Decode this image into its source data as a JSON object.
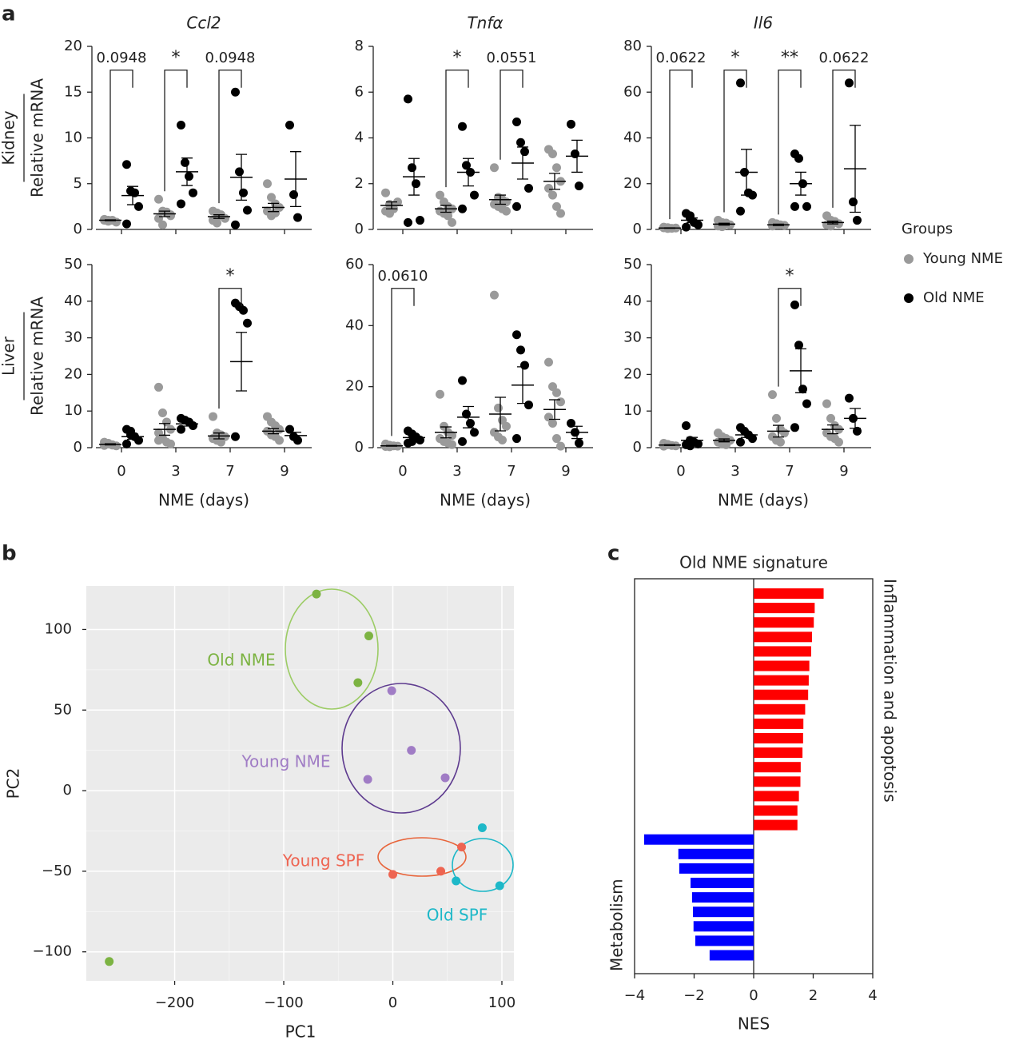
{
  "panel_labels": [
    "a",
    "b",
    "c"
  ],
  "legend": {
    "title": "Groups",
    "items": [
      {
        "name": "Young NME",
        "color": "#9a9a9a"
      },
      {
        "name": "Old NME",
        "color": "#000000"
      }
    ]
  },
  "chart_data": [
    {
      "type": "dot",
      "title": "Ccl2",
      "row_label": "Kidney",
      "ylabel": "Relative mRNA",
      "categories": [
        null,
        null,
        null,
        null
      ],
      "ylim": [
        0,
        20
      ],
      "yticks": [
        0,
        5,
        10,
        15,
        20
      ],
      "annotations": [
        "0.0948",
        "*",
        "0.0948",
        null
      ],
      "series": [
        {
          "values": [
            [
              1,
              0.9,
              1,
              0.8,
              1.1,
              1
            ],
            [
              3.3,
              2,
              1.8,
              1.5,
              1.2,
              0.5,
              1.9,
              1.6
            ],
            [
              2,
              1.8,
              1.5,
              1.2,
              1,
              0.7,
              1.6
            ],
            [
              5,
              3.5,
              2.8,
              2.4,
              2,
              1.5,
              1.8
            ]
          ],
          "means": [
            1,
            1.7,
            1.4,
            2.4
          ],
          "sems": [
            0.05,
            0.3,
            0.2,
            0.45
          ]
        },
        {
          "values": [
            [
              7.1,
              4.2,
              4,
              2.5,
              0.6
            ],
            [
              11.4,
              7.3,
              5.8,
              4,
              2.8
            ],
            [
              15,
              6.3,
              4,
              2.1,
              0.5
            ],
            [
              11.4,
              3.8,
              1.3
            ]
          ],
          "means": [
            3.7,
            6.3,
            5.7,
            5.5
          ],
          "sems": [
            1,
            1.5,
            2.5,
            3
          ]
        }
      ]
    },
    {
      "type": "dot",
      "title": "Tnfα",
      "categories": [
        null,
        null,
        null,
        null
      ],
      "ylim": [
        0,
        8
      ],
      "yticks": [
        0,
        2,
        4,
        6,
        8
      ],
      "annotations": [
        null,
        "*",
        "0.0551",
        null
      ],
      "series": [
        {
          "values": [
            [
              1.6,
              1.1,
              0.9,
              1.2,
              0.8,
              0.7
            ],
            [
              1.5,
              1.2,
              1,
              0.9,
              0.8,
              0.7,
              0.6,
              0.3
            ],
            [
              2.7,
              1.4,
              1.3,
              1.2,
              1.1,
              1,
              0.9,
              0.8
            ],
            [
              3.5,
              3.3,
              2.7,
              2.1,
              1.8,
              1.5,
              1,
              0.7
            ]
          ],
          "means": [
            1.05,
            0.9,
            1.3,
            2.1
          ],
          "sems": [
            0.15,
            0.15,
            0.2,
            0.35
          ]
        },
        {
          "values": [
            [
              5.7,
              2.7,
              2,
              0.4,
              0.3
            ],
            [
              4.5,
              2.8,
              2.5,
              1.5,
              0.9
            ],
            [
              4.7,
              3.8,
              3.4,
              1.8,
              1
            ],
            [
              4.6,
              3.3,
              1.9
            ]
          ],
          "means": [
            2.3,
            2.5,
            2.9,
            3.2
          ],
          "sems": [
            0.8,
            0.6,
            0.7,
            0.7
          ]
        }
      ]
    },
    {
      "type": "dot",
      "title": "Il6",
      "categories": [
        null,
        null,
        null,
        null
      ],
      "ylim": [
        0,
        80
      ],
      "yticks": [
        0,
        20,
        40,
        60,
        80
      ],
      "annotations": [
        "0.0622",
        "*",
        "**",
        "0.0622"
      ],
      "series": [
        {
          "values": [
            [
              1,
              0.8,
              0.5,
              0.6,
              0.7,
              0.4
            ],
            [
              4,
              3,
              2.5,
              2,
              1.5,
              1.2,
              2.8
            ],
            [
              3,
              2.5,
              2,
              1.8,
              1.5,
              2.2
            ],
            [
              6,
              4,
              3,
              2.5,
              2,
              1.5,
              3.5
            ]
          ],
          "means": [
            0.6,
            2.3,
            2,
            3
          ],
          "sems": [
            0.1,
            0.4,
            0.3,
            0.6
          ]
        },
        {
          "values": [
            [
              7,
              5,
              3,
              2,
              1,
              6
            ],
            [
              64,
              25,
              16,
              15,
              8
            ],
            [
              33,
              31,
              20,
              10,
              10
            ],
            [
              64,
              12,
              4
            ]
          ],
          "means": [
            4,
            25,
            20,
            26.5
          ],
          "sems": [
            1,
            10,
            5,
            19
          ]
        }
      ]
    },
    {
      "type": "dot",
      "row_label": "Liver",
      "ylabel": "Relative mRNA",
      "xlabel": "NME (days)",
      "categories": [
        "0",
        "3",
        "7",
        "9"
      ],
      "ylim": [
        0,
        50
      ],
      "yticks": [
        0,
        10,
        20,
        30,
        40,
        50
      ],
      "annotations": [
        null,
        null,
        "*",
        null
      ],
      "series": [
        {
          "values": [
            [
              1.5,
              1,
              0.8,
              0.5,
              0.6,
              1.2,
              0.7
            ],
            [
              16.5,
              9.5,
              7,
              5,
              4,
              2.5,
              1.5,
              1,
              2
            ],
            [
              8.5,
              4,
              3.5,
              3,
              2.5,
              2,
              1.5
            ],
            [
              8.5,
              7,
              6,
              5,
              4.5,
              3.5,
              3,
              2
            ]
          ],
          "means": [
            0.9,
            5,
            3.2,
            4.5
          ],
          "sems": [
            0.15,
            1.6,
            0.8,
            0.7
          ]
        },
        {
          "values": [
            [
              5,
              4.5,
              3,
              2,
              1,
              3.5
            ],
            [
              8,
              7.5,
              7,
              6,
              5
            ],
            [
              39.5,
              38.5,
              37.5,
              34,
              3
            ],
            [
              5,
              3,
              2
            ]
          ],
          "means": [
            3,
            6.5,
            23.5,
            3.3
          ],
          "sems": [
            0.7,
            0.6,
            8,
            0.9
          ]
        }
      ]
    },
    {
      "type": "dot",
      "xlabel": "NME (days)",
      "categories": [
        "0",
        "3",
        "7",
        "9"
      ],
      "ylim": [
        0,
        60
      ],
      "yticks": [
        0,
        20,
        40,
        60
      ],
      "annotations": [
        "0.0610",
        null,
        null,
        null
      ],
      "series": [
        {
          "values": [
            [
              1.2,
              0.8,
              0.6,
              0.5,
              0.4,
              0.3
            ],
            [
              17.5,
              7,
              5,
              4,
              3,
              2,
              1.5,
              1
            ],
            [
              50,
              13,
              9,
              7,
              5,
              3.5,
              2.5
            ],
            [
              28,
              20,
              18,
              15,
              10,
              8,
              3,
              0.5
            ]
          ],
          "means": [
            0.6,
            5,
            11,
            12.5
          ],
          "sems": [
            0.1,
            1.8,
            5.5,
            3.2
          ]
        },
        {
          "values": [
            [
              5.5,
              4.5,
              3.5,
              2.5,
              1.5,
              2
            ],
            [
              22,
              11,
              8,
              5,
              2
            ],
            [
              37,
              32,
              27,
              14,
              3
            ],
            [
              8,
              5,
              1.5
            ]
          ],
          "means": [
            3.3,
            10,
            20.5,
            5
          ],
          "sems": [
            0.6,
            3.5,
            6,
            2
          ]
        }
      ]
    },
    {
      "type": "dot",
      "xlabel": "NME (days)",
      "categories": [
        "0",
        "3",
        "7",
        "9"
      ],
      "ylim": [
        0,
        50
      ],
      "yticks": [
        0,
        10,
        20,
        30,
        40,
        50
      ],
      "annotations": [
        null,
        null,
        "*",
        null
      ],
      "series": [
        {
          "values": [
            [
              1.2,
              0.8,
              0.6,
              0.5,
              0.4,
              0.9
            ],
            [
              4,
              3,
              2.5,
              2,
              1.5,
              1,
              0.8
            ],
            [
              14.5,
              8,
              5,
              4,
              3,
              2,
              1.5
            ],
            [
              12,
              8,
              6,
              5,
              4,
              3,
              2.5,
              1.5
            ]
          ],
          "means": [
            0.7,
            2,
            4.5,
            5
          ],
          "sems": [
            0.1,
            0.4,
            1.6,
            1.2
          ]
        },
        {
          "values": [
            [
              6,
              2,
              1.5,
              1,
              0.8,
              0.5
            ],
            [
              5.5,
              4.5,
              3.5,
              2.5,
              1.5
            ],
            [
              39,
              28,
              16,
              12,
              5.5
            ],
            [
              13.5,
              8,
              4.5
            ]
          ],
          "means": [
            2,
            3.5,
            21,
            8
          ],
          "sems": [
            0.8,
            0.7,
            6,
            2.7
          ]
        }
      ]
    },
    {
      "type": "scatter",
      "xlabel": "PC1",
      "ylabel": "PC2",
      "xlim": [
        -281,
        111
      ],
      "ylim": [
        -118,
        127
      ],
      "xticks": [
        {
          "value": -200,
          "label": "−200"
        },
        {
          "value": -100,
          "label": "−100"
        },
        0,
        100
      ],
      "yticks": [
        {
          "value": -100,
          "label": "−100"
        },
        {
          "value": -50,
          "label": "−50"
        },
        0,
        50,
        100
      ],
      "grid": true,
      "series": [
        {
          "name": "Old NME",
          "color": "#7cb342",
          "x": [
            -70,
            -22,
            -32,
            -260
          ],
          "values": [
            122,
            96,
            67,
            -106
          ]
        },
        {
          "name": "Young NME",
          "color": "#a07cc5",
          "x": [
            -1,
            17,
            -23,
            48
          ],
          "values": [
            62,
            25,
            7,
            8
          ]
        },
        {
          "name": "Young SPF",
          "color": "#ee6451",
          "x": [
            63,
            0,
            44
          ],
          "values": [
            -35,
            -52,
            -50
          ]
        },
        {
          "name": "Old SPF",
          "color": "#1eb8c8",
          "x": [
            82,
            58,
            98
          ],
          "values": [
            -23,
            -56,
            -59
          ]
        }
      ]
    },
    {
      "type": "hbar",
      "title": "Old NME signature",
      "xlabel": "NES",
      "xlim": [
        -4,
        4
      ],
      "xticks": [
        {
          "value": -4,
          "label": "−4"
        },
        {
          "value": -2,
          "label": "−2"
        },
        0,
        2,
        4
      ],
      "series": [
        {
          "name": "Inflammation and apoptosis",
          "color": "#ff0000",
          "values": [
            2.35,
            2.05,
            2.02,
            1.96,
            1.93,
            1.87,
            1.85,
            1.83,
            1.73,
            1.67,
            1.66,
            1.64,
            1.58,
            1.57,
            1.52,
            1.47,
            1.47
          ]
        },
        {
          "name": "Metabolism",
          "color": "#0000ff",
          "values": [
            -3.68,
            -2.53,
            -2.5,
            -2.12,
            -2.07,
            -2.04,
            -2.02,
            -1.96,
            -1.48
          ]
        }
      ]
    }
  ]
}
